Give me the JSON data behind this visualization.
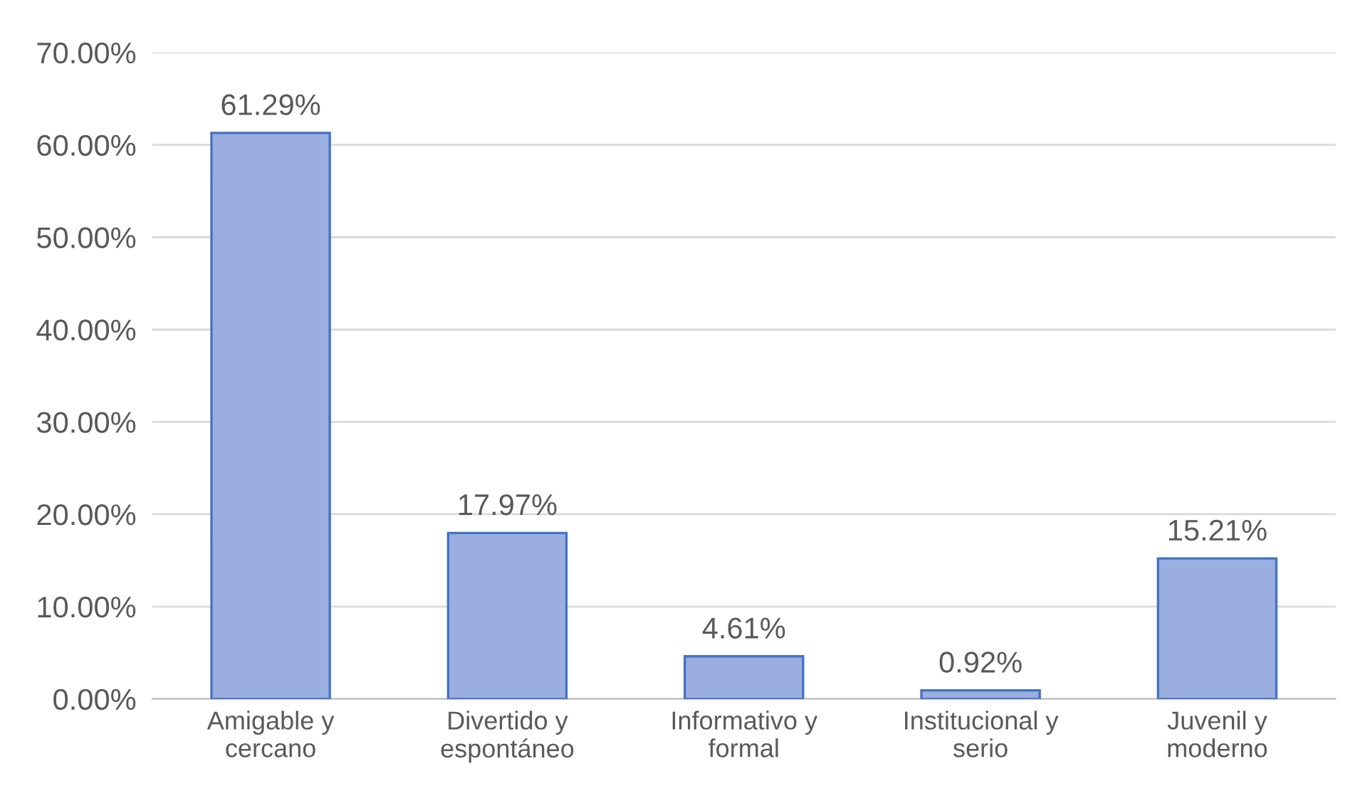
{
  "chart_data": {
    "type": "bar",
    "categories": [
      "Amigable y\ncercano",
      "Divertido y\nespontáneo",
      "Informativo y\nformal",
      "Institucional y\nserio",
      "Juvenil y\nmoderno"
    ],
    "values": [
      61.29,
      17.97,
      4.61,
      0.92,
      15.21
    ],
    "value_labels": [
      "61.29%",
      "17.97%",
      "4.61%",
      "0.92%",
      "15.21%"
    ],
    "color": "#9aaee0",
    "ylim": [
      0,
      70
    ],
    "yticks": [
      {
        "value": 0,
        "label": "0.00%"
      },
      {
        "value": 10,
        "label": "10.00%"
      },
      {
        "value": 20,
        "label": "20.00%"
      },
      {
        "value": 30,
        "label": "30.00%"
      },
      {
        "value": 40,
        "label": "40.00%"
      },
      {
        "value": 50,
        "label": "50.00%"
      },
      {
        "value": 60,
        "label": "60.00%"
      },
      {
        "value": 70,
        "label": "70.00%"
      }
    ],
    "grid": "y"
  }
}
